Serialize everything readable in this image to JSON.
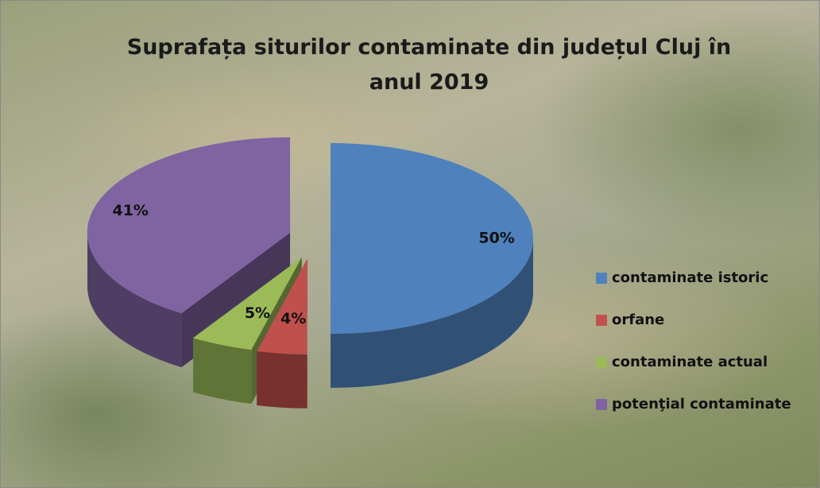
{
  "chart_data": {
    "type": "pie3d",
    "title": "Suprafața siturilor contaminate din județul Cluj în anul 2019",
    "categories": [
      "contaminate istoric",
      "orfane",
      "contaminate actual",
      "potenţial contaminate"
    ],
    "values": [
      50,
      4,
      5,
      41
    ],
    "value_labels": [
      "50%",
      "4%",
      "5%",
      "41%"
    ],
    "colors": [
      "#4f81bd",
      "#c0504d",
      "#9bbb59",
      "#8064a2"
    ],
    "legend": "right"
  }
}
